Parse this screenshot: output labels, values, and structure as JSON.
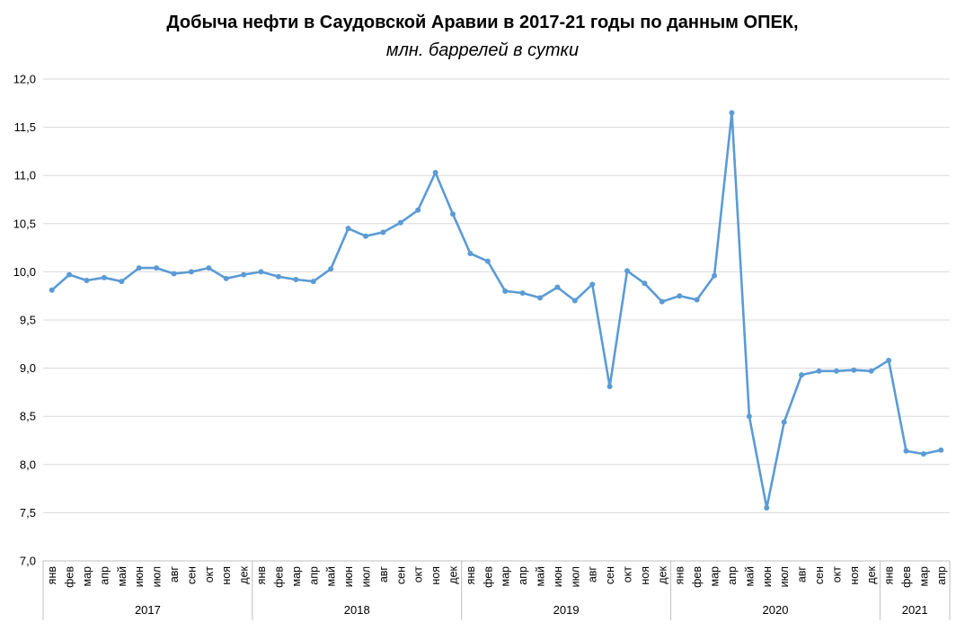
{
  "chart_data": {
    "type": "line",
    "title": "Добыча нефти в Саудовской Аравии в 2017-21 годы по данным ОПЕК,",
    "subtitle": "млн. баррелей в сутки",
    "ylim": [
      7.0,
      12.0
    ],
    "yticks": [
      "7,0",
      "7,5",
      "8,0",
      "8,5",
      "9,0",
      "9,5",
      "10,0",
      "10,5",
      "11,0",
      "11,5",
      "12,0"
    ],
    "ytick_values": [
      7.0,
      7.5,
      8.0,
      8.5,
      9.0,
      9.5,
      10.0,
      10.5,
      11.0,
      11.5,
      12.0
    ],
    "grid": true,
    "legend": "none",
    "line_color": "#5b9bd5",
    "years": [
      {
        "label": "2017",
        "months": 12
      },
      {
        "label": "2018",
        "months": 12
      },
      {
        "label": "2019",
        "months": 12
      },
      {
        "label": "2020",
        "months": 12
      },
      {
        "label": "2021",
        "months": 4
      }
    ],
    "categories": [
      "янв",
      "фев",
      "мар",
      "апр",
      "май",
      "июн",
      "июл",
      "авг",
      "сен",
      "окт",
      "ноя",
      "дек",
      "янв",
      "фев",
      "мар",
      "апр",
      "май",
      "июн",
      "июл",
      "авг",
      "сен",
      "окт",
      "ноя",
      "дек",
      "янв",
      "фев",
      "мар",
      "апр",
      "май",
      "июн",
      "июл",
      "авг",
      "сен",
      "окт",
      "ноя",
      "дек",
      "янв",
      "фев",
      "мар",
      "апр",
      "май",
      "июн",
      "июл",
      "авг",
      "сен",
      "окт",
      "ноя",
      "дек",
      "янв",
      "фев",
      "мар",
      "апр"
    ],
    "values": [
      9.81,
      9.97,
      9.91,
      9.94,
      9.9,
      10.04,
      10.04,
      9.98,
      10.0,
      10.04,
      9.93,
      9.97,
      10.0,
      9.95,
      9.92,
      9.9,
      10.03,
      10.45,
      10.37,
      10.41,
      10.51,
      10.64,
      11.03,
      10.6,
      10.19,
      10.11,
      9.8,
      9.78,
      9.73,
      9.84,
      9.7,
      9.87,
      8.81,
      10.01,
      9.88,
      9.69,
      9.75,
      9.71,
      9.96,
      11.65,
      8.5,
      7.55,
      8.44,
      8.93,
      8.97,
      8.97,
      8.98,
      8.97,
      9.08,
      8.14,
      8.11,
      8.15
    ]
  }
}
